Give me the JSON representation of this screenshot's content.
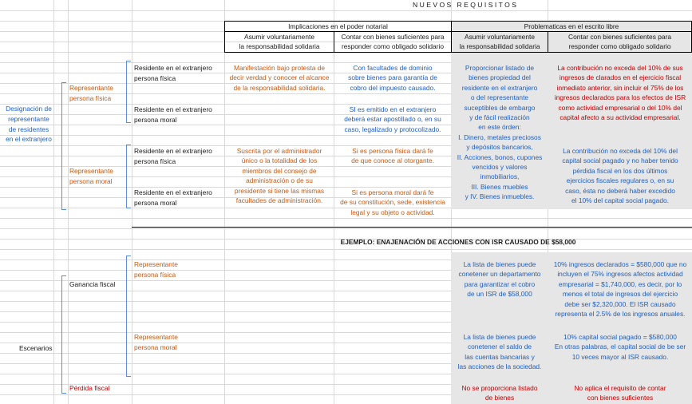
{
  "title": "NUEVOS REQUISITOS",
  "headers": {
    "implicaciones": "Implicaciones en el poder notarial",
    "problematicas": "Problematicas en el escrito libre",
    "col_asumir_1": "Asumir voluntariamente",
    "col_asumir_2": "la responsabilidad solidaria",
    "col_contar_1": "Contar con bienes suficientes para",
    "col_contar_2": "responder como obligado solidario"
  },
  "designacion": {
    "label_1": "Designación de",
    "label_2": "representante",
    "label_3": "de residentes",
    "label_4": "en el extranjero",
    "rep_fisica_1": "Representante",
    "rep_fisica_2": "persona física",
    "rep_moral_1": "Representante",
    "rep_moral_2": "persona moral",
    "res_ext": "Residente en el extranjero",
    "persona_fisica": "persona física",
    "persona_moral": "persona moral"
  },
  "impl_asumir_fisica": [
    "Manifestación bajo protesta de",
    "decir verdad y conocer el alcance",
    "de la responsabilidad solidaria."
  ],
  "impl_contar_fisica": [
    "Con facultades de dominio",
    "sobre bienes para garantía de",
    "cobro del impuesto causado."
  ],
  "impl_contar_moral": [
    "SI es emitido en el extranjero",
    "deberá estar apostillado o, en su",
    "caso, legalizado y protocolizado."
  ],
  "impl_asumir_rep_moral": [
    "Suscrita por el administrador",
    "único o la totalidad de los",
    "miembros del consejo de",
    "administración o de su",
    "presidente si tiene las mismas",
    "facultades de administración."
  ],
  "impl_contar_rep_fisica": [
    "Si es persona física dará fe",
    "de que conoce al otorgante."
  ],
  "impl_contar_rep_moral": [
    "Si es persona moral dará fe",
    "de su constitución, sede, existencia",
    "legal y su objeto o actividad."
  ],
  "prob_asumir": [
    "Proporcionar listado de",
    "bienes propiedad del",
    "residente en el extranjero",
    "o del representante",
    "suceptibles de embargo",
    "y de fácil realización",
    "en este órden:",
    "I. Dinero, metales preciosos",
    "y depósitos bancarios,",
    "II. Acciones, bonos, cupones",
    "vencidos y valores",
    "inmobiliarios,",
    "III. Bienes muebles",
    "y IV. Bienes inmuebles."
  ],
  "prob_contar_top": [
    "La contribución no exceda del 10% de sus",
    "ingresos de clarados en el ejercicio fiscal",
    "inmediato anterior, sin incluir el 75% de los",
    "ingresos declarados para los efectos de ISR",
    "como actividad empresarial o del 10% del",
    "capital afecto a su actividad empresarial."
  ],
  "prob_contar_bottom": [
    "La contribución no exceda del 10% del",
    "capital social pagado y no haber tenido",
    "pérdida fiscal en los dos últimos",
    "ejercicios fiscales regulares o, en su",
    "caso, ésta no deberá haber excedido",
    "el 10% del capital social pagado."
  ],
  "example_title": "EJEMPLO: ENAJENACIÓN DE ACCIONES CON ISR CAUSADO DE $58,000",
  "escenarios": {
    "label": "Escenarios",
    "ganancia": "Ganancia fiscal",
    "perdida": "Pérdida fiscal",
    "rep_1": "Representante",
    "rep_fisica": "persona física",
    "rep_moral": "persona moral"
  },
  "ej_asumir_fisica": [
    "La lista de bienes puede",
    "conetener un departamento",
    "para garantizar el cobro",
    "de un ISR de $58,000"
  ],
  "ej_contar_fisica": [
    "10% ingresos declarados = $580,000 que no",
    "incluyen el 75% ingresos afectos actividad",
    "empresarial = $1,740,000, es decir, por lo",
    "menos el total de ingresos del ejercicio",
    "debe ser $2,320,000. El ISR causado",
    "representa el 2.5% de los ingresos anuales."
  ],
  "ej_asumir_moral": [
    "La lista de bienes puede",
    "conetener el saldo de",
    "las cuentas bancarias y",
    "las acciones de la sociedad."
  ],
  "ej_contar_moral": [
    "10% capital social pagado = $580,000",
    "En otras palabras, el capital social de be ser",
    "10 veces mayor al ISR causado."
  ],
  "perdida_asumir": [
    "No se proporciona listado",
    "de bienes"
  ],
  "perdida_contar": [
    "No aplica el requisito de contar",
    "con bienes suficientes"
  ]
}
